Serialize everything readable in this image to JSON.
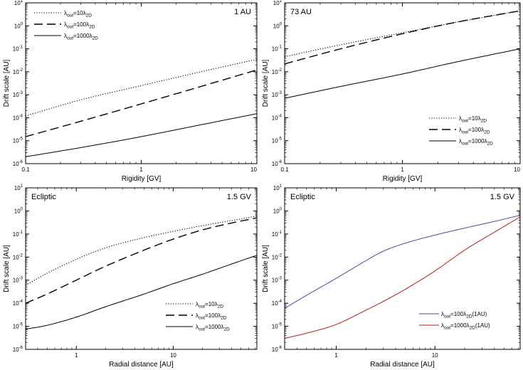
{
  "figure": {
    "name": "drift-scale-figure"
  },
  "chart_data": [
    {
      "type": "line",
      "panel": "top-left",
      "corner_left": "",
      "corner_right": "1 AU",
      "xlabel": "Rigidity [GV]",
      "ylabel": "Drift scale [AU]",
      "xscale": "log",
      "yscale": "log",
      "xlim": [
        0.1,
        10
      ],
      "ylim": [
        1e-06,
        10
      ],
      "xticks": [
        {
          "v": 0.1,
          "label": "0.1"
        },
        {
          "v": 1,
          "label": "1"
        },
        {
          "v": 10,
          "label": "10"
        }
      ],
      "legend_position": "top-left",
      "series": [
        {
          "name": "λout=10λ2D",
          "sub1": "out",
          "mid": "=10λ",
          "sub2": "2D",
          "style": "dotted",
          "color": "#000000",
          "x": [
            0.1,
            0.3,
            1,
            3,
            10
          ],
          "y": [
            0.00012,
            0.0006,
            0.0025,
            0.009,
            0.035
          ]
        },
        {
          "name": "λout=100λ2D",
          "sub1": "out",
          "mid": "=100λ",
          "sub2": "2D",
          "style": "dashed",
          "color": "#000000",
          "x": [
            0.1,
            0.3,
            1,
            3,
            10
          ],
          "y": [
            1.5e-05,
            7e-05,
            0.0004,
            0.002,
            0.012
          ]
        },
        {
          "name": "λout=1000λ2D",
          "sub1": "out",
          "mid": "=1000λ",
          "sub2": "2D",
          "style": "solid",
          "color": "#000000",
          "x": [
            0.1,
            0.3,
            1,
            3,
            10
          ],
          "y": [
            2e-06,
            5e-06,
            1.5e-05,
            4.5e-05,
            0.00015
          ]
        }
      ]
    },
    {
      "type": "line",
      "panel": "top-right",
      "corner_left": "73 AU",
      "corner_right": "",
      "xlabel": "Rigidity [GV]",
      "ylabel": "Drift scale [AU]",
      "xscale": "log",
      "yscale": "log",
      "xlim": [
        0.1,
        10
      ],
      "ylim": [
        1e-06,
        10
      ],
      "xticks": [
        {
          "v": 0.1,
          "label": "0.1"
        },
        {
          "v": 1,
          "label": "1"
        },
        {
          "v": 10,
          "label": "10"
        }
      ],
      "legend_position": "bottom-right",
      "series": [
        {
          "name": "λout=10λ2D",
          "sub1": "out",
          "mid": "=10λ",
          "sub2": "2D",
          "style": "dotted",
          "color": "#000000",
          "x": [
            0.1,
            0.3,
            1,
            3,
            10
          ],
          "y": [
            0.045,
            0.15,
            0.5,
            1.5,
            4.5
          ]
        },
        {
          "name": "λout=100λ2D",
          "sub1": "out",
          "mid": "=100λ",
          "sub2": "2D",
          "style": "dashed",
          "color": "#000000",
          "x": [
            0.1,
            0.3,
            1,
            3,
            10
          ],
          "y": [
            0.022,
            0.1,
            0.45,
            1.5,
            4.5
          ]
        },
        {
          "name": "λout=1000λ2D",
          "sub1": "out",
          "mid": "=1000λ",
          "sub2": "2D",
          "style": "solid",
          "color": "#000000",
          "x": [
            0.1,
            0.3,
            1,
            3,
            10
          ],
          "y": [
            0.0007,
            0.0023,
            0.008,
            0.028,
            0.1
          ]
        }
      ]
    },
    {
      "type": "line",
      "panel": "bottom-left",
      "corner_left": "Ecliptic",
      "corner_right": "1.5 GV",
      "xlabel": "Radial distance [AU]",
      "ylabel": "Drift scale [AU]",
      "xscale": "log",
      "yscale": "log",
      "xlim": [
        0.3,
        73
      ],
      "ylim": [
        1e-06,
        10
      ],
      "xticks": [
        {
          "v": 1,
          "label": "1"
        },
        {
          "v": 10,
          "label": "10"
        }
      ],
      "legend_position": "bottom-right",
      "series": [
        {
          "name": "λout=10λ2D",
          "sub1": "out",
          "mid": "=10λ",
          "sub2": "2D",
          "style": "dotted",
          "color": "#000000",
          "x": [
            0.3,
            0.5,
            1,
            2,
            5,
            10,
            20,
            40,
            73
          ],
          "y": [
            0.0006,
            0.002,
            0.008,
            0.025,
            0.07,
            0.13,
            0.23,
            0.38,
            0.6
          ]
        },
        {
          "name": "λout=100λ2D",
          "sub1": "out",
          "mid": "=100λ",
          "sub2": "2D",
          "style": "dashed",
          "color": "#000000",
          "x": [
            0.3,
            0.5,
            1,
            2,
            5,
            10,
            20,
            40,
            73
          ],
          "y": [
            0.0001,
            0.00025,
            0.001,
            0.004,
            0.02,
            0.06,
            0.15,
            0.3,
            0.5
          ]
        },
        {
          "name": "λout=1000λ2D",
          "sub1": "out",
          "mid": "=1000λ",
          "sub2": "2D",
          "style": "solid",
          "color": "#000000",
          "x": [
            0.3,
            0.5,
            1,
            2,
            5,
            10,
            20,
            40,
            73
          ],
          "y": [
            7.5e-06,
            1.1e-05,
            2.5e-05,
            7e-05,
            0.00025,
            0.0007,
            0.0018,
            0.005,
            0.012
          ]
        }
      ]
    },
    {
      "type": "line",
      "panel": "bottom-right",
      "corner_left": "Ecliptic",
      "corner_right": "1.5 GV",
      "xlabel": "Radial distance [AU]",
      "ylabel": "Drift scale [AU]",
      "xscale": "log",
      "yscale": "log",
      "xlim": [
        0.3,
        73
      ],
      "ylim": [
        1e-06,
        10
      ],
      "xticks": [
        {
          "v": 1,
          "label": "1"
        },
        {
          "v": 10,
          "label": "10"
        }
      ],
      "legend_position": "bottom-right",
      "series": [
        {
          "name": "λout=100λ2D(1AU)",
          "sub1": "out",
          "mid": "=100λ",
          "sub2": "2D",
          "suffix": "(1AU)",
          "style": "solid",
          "color": "#4a4aa0",
          "x": [
            0.3,
            0.5,
            1,
            2,
            3,
            5,
            10,
            20,
            40,
            73
          ],
          "y": [
            6e-05,
            0.00022,
            0.0012,
            0.007,
            0.018,
            0.04,
            0.09,
            0.18,
            0.35,
            0.65
          ]
        },
        {
          "name": "λout=1000λ2D(1AU)",
          "sub1": "out",
          "mid": "=1000λ",
          "sub2": "2D",
          "suffix": "(1AU)",
          "style": "solid",
          "color": "#c01818",
          "x": [
            0.3,
            0.5,
            1,
            2,
            3,
            5,
            10,
            20,
            40,
            73
          ],
          "y": [
            3e-06,
            5e-06,
            1.2e-05,
            5e-05,
            0.00012,
            0.0004,
            0.0025,
            0.02,
            0.12,
            0.55
          ]
        }
      ]
    }
  ],
  "yticks": [
    {
      "v": 1e-06,
      "base": "10",
      "exp": "-6"
    },
    {
      "v": 1e-05,
      "base": "10",
      "exp": "-5"
    },
    {
      "v": 0.0001,
      "base": "10",
      "exp": "-4"
    },
    {
      "v": 0.001,
      "base": "10",
      "exp": "-3"
    },
    {
      "v": 0.01,
      "base": "10",
      "exp": "-2"
    },
    {
      "v": 0.1,
      "base": "10",
      "exp": "-1"
    },
    {
      "v": 1,
      "base": "10",
      "exp": "0"
    },
    {
      "v": 10,
      "base": "10",
      "exp": "1"
    }
  ]
}
